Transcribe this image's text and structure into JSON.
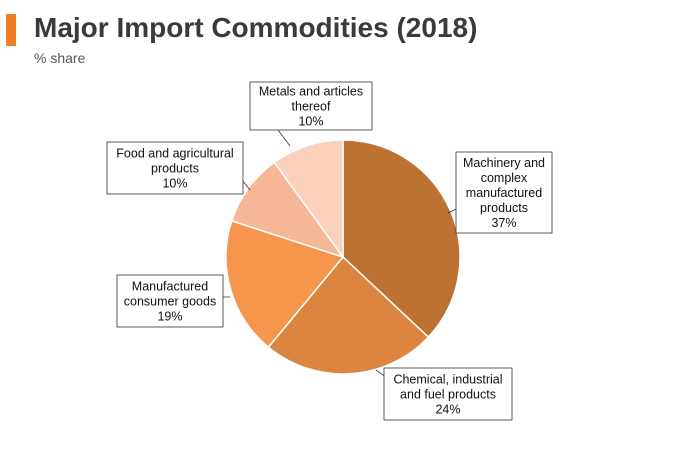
{
  "header": {
    "title": "Major Import Commodities (2018)",
    "subtitle": "% share"
  },
  "chart_data": {
    "type": "pie",
    "start_angle_deg": 0,
    "direction": "clockwise",
    "slices": [
      {
        "name": "Machinery and complex manufactured products",
        "value": 37,
        "label_lines": [
          "Machinery and",
          "complex",
          "manufactured",
          "products",
          "37%"
        ],
        "color": "#bb7233"
      },
      {
        "name": "Chemical, industrial and fuel products",
        "value": 24,
        "label_lines": [
          "Chemical, industrial",
          "and fuel products",
          "24%"
        ],
        "color": "#dc8540"
      },
      {
        "name": "Manufactured consumer goods",
        "value": 19,
        "label_lines": [
          "Manufactured",
          "consumer goods",
          "19%"
        ],
        "color": "#f6964c"
      },
      {
        "name": "Food and agricultural products",
        "value": 10,
        "label_lines": [
          "Food and agricultural",
          "products",
          "10%"
        ],
        "color": "#f7b695"
      },
      {
        "name": "Metals and articles thereof",
        "value": 10,
        "label_lines": [
          "Metals and articles",
          "thereof",
          "10%"
        ],
        "color": "#fbd0bc"
      }
    ]
  }
}
